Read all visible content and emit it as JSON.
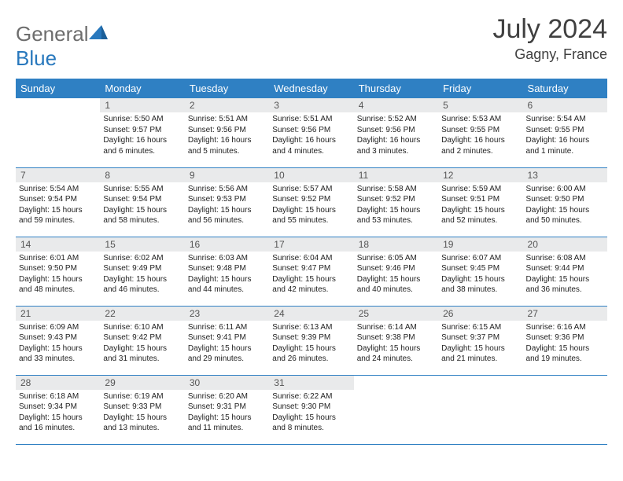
{
  "brand": {
    "part1": "General",
    "part2": "Blue"
  },
  "title": "July 2024",
  "location": "Gagny, France",
  "colors": {
    "header_bg": "#2f80c3",
    "header_text": "#ffffff",
    "daynum_bg": "#e9eaeb",
    "row_border": "#2f80c3",
    "logo_gray": "#6d6d6d",
    "logo_blue": "#2878bd"
  },
  "weekdays": [
    "Sunday",
    "Monday",
    "Tuesday",
    "Wednesday",
    "Thursday",
    "Friday",
    "Saturday"
  ],
  "weeks": [
    [
      null,
      {
        "n": "1",
        "sr": "Sunrise: 5:50 AM",
        "ss": "Sunset: 9:57 PM",
        "dl1": "Daylight: 16 hours",
        "dl2": "and 6 minutes."
      },
      {
        "n": "2",
        "sr": "Sunrise: 5:51 AM",
        "ss": "Sunset: 9:56 PM",
        "dl1": "Daylight: 16 hours",
        "dl2": "and 5 minutes."
      },
      {
        "n": "3",
        "sr": "Sunrise: 5:51 AM",
        "ss": "Sunset: 9:56 PM",
        "dl1": "Daylight: 16 hours",
        "dl2": "and 4 minutes."
      },
      {
        "n": "4",
        "sr": "Sunrise: 5:52 AM",
        "ss": "Sunset: 9:56 PM",
        "dl1": "Daylight: 16 hours",
        "dl2": "and 3 minutes."
      },
      {
        "n": "5",
        "sr": "Sunrise: 5:53 AM",
        "ss": "Sunset: 9:55 PM",
        "dl1": "Daylight: 16 hours",
        "dl2": "and 2 minutes."
      },
      {
        "n": "6",
        "sr": "Sunrise: 5:54 AM",
        "ss": "Sunset: 9:55 PM",
        "dl1": "Daylight: 16 hours",
        "dl2": "and 1 minute."
      }
    ],
    [
      {
        "n": "7",
        "sr": "Sunrise: 5:54 AM",
        "ss": "Sunset: 9:54 PM",
        "dl1": "Daylight: 15 hours",
        "dl2": "and 59 minutes."
      },
      {
        "n": "8",
        "sr": "Sunrise: 5:55 AM",
        "ss": "Sunset: 9:54 PM",
        "dl1": "Daylight: 15 hours",
        "dl2": "and 58 minutes."
      },
      {
        "n": "9",
        "sr": "Sunrise: 5:56 AM",
        "ss": "Sunset: 9:53 PM",
        "dl1": "Daylight: 15 hours",
        "dl2": "and 56 minutes."
      },
      {
        "n": "10",
        "sr": "Sunrise: 5:57 AM",
        "ss": "Sunset: 9:52 PM",
        "dl1": "Daylight: 15 hours",
        "dl2": "and 55 minutes."
      },
      {
        "n": "11",
        "sr": "Sunrise: 5:58 AM",
        "ss": "Sunset: 9:52 PM",
        "dl1": "Daylight: 15 hours",
        "dl2": "and 53 minutes."
      },
      {
        "n": "12",
        "sr": "Sunrise: 5:59 AM",
        "ss": "Sunset: 9:51 PM",
        "dl1": "Daylight: 15 hours",
        "dl2": "and 52 minutes."
      },
      {
        "n": "13",
        "sr": "Sunrise: 6:00 AM",
        "ss": "Sunset: 9:50 PM",
        "dl1": "Daylight: 15 hours",
        "dl2": "and 50 minutes."
      }
    ],
    [
      {
        "n": "14",
        "sr": "Sunrise: 6:01 AM",
        "ss": "Sunset: 9:50 PM",
        "dl1": "Daylight: 15 hours",
        "dl2": "and 48 minutes."
      },
      {
        "n": "15",
        "sr": "Sunrise: 6:02 AM",
        "ss": "Sunset: 9:49 PM",
        "dl1": "Daylight: 15 hours",
        "dl2": "and 46 minutes."
      },
      {
        "n": "16",
        "sr": "Sunrise: 6:03 AM",
        "ss": "Sunset: 9:48 PM",
        "dl1": "Daylight: 15 hours",
        "dl2": "and 44 minutes."
      },
      {
        "n": "17",
        "sr": "Sunrise: 6:04 AM",
        "ss": "Sunset: 9:47 PM",
        "dl1": "Daylight: 15 hours",
        "dl2": "and 42 minutes."
      },
      {
        "n": "18",
        "sr": "Sunrise: 6:05 AM",
        "ss": "Sunset: 9:46 PM",
        "dl1": "Daylight: 15 hours",
        "dl2": "and 40 minutes."
      },
      {
        "n": "19",
        "sr": "Sunrise: 6:07 AM",
        "ss": "Sunset: 9:45 PM",
        "dl1": "Daylight: 15 hours",
        "dl2": "and 38 minutes."
      },
      {
        "n": "20",
        "sr": "Sunrise: 6:08 AM",
        "ss": "Sunset: 9:44 PM",
        "dl1": "Daylight: 15 hours",
        "dl2": "and 36 minutes."
      }
    ],
    [
      {
        "n": "21",
        "sr": "Sunrise: 6:09 AM",
        "ss": "Sunset: 9:43 PM",
        "dl1": "Daylight: 15 hours",
        "dl2": "and 33 minutes."
      },
      {
        "n": "22",
        "sr": "Sunrise: 6:10 AM",
        "ss": "Sunset: 9:42 PM",
        "dl1": "Daylight: 15 hours",
        "dl2": "and 31 minutes."
      },
      {
        "n": "23",
        "sr": "Sunrise: 6:11 AM",
        "ss": "Sunset: 9:41 PM",
        "dl1": "Daylight: 15 hours",
        "dl2": "and 29 minutes."
      },
      {
        "n": "24",
        "sr": "Sunrise: 6:13 AM",
        "ss": "Sunset: 9:39 PM",
        "dl1": "Daylight: 15 hours",
        "dl2": "and 26 minutes."
      },
      {
        "n": "25",
        "sr": "Sunrise: 6:14 AM",
        "ss": "Sunset: 9:38 PM",
        "dl1": "Daylight: 15 hours",
        "dl2": "and 24 minutes."
      },
      {
        "n": "26",
        "sr": "Sunrise: 6:15 AM",
        "ss": "Sunset: 9:37 PM",
        "dl1": "Daylight: 15 hours",
        "dl2": "and 21 minutes."
      },
      {
        "n": "27",
        "sr": "Sunrise: 6:16 AM",
        "ss": "Sunset: 9:36 PM",
        "dl1": "Daylight: 15 hours",
        "dl2": "and 19 minutes."
      }
    ],
    [
      {
        "n": "28",
        "sr": "Sunrise: 6:18 AM",
        "ss": "Sunset: 9:34 PM",
        "dl1": "Daylight: 15 hours",
        "dl2": "and 16 minutes."
      },
      {
        "n": "29",
        "sr": "Sunrise: 6:19 AM",
        "ss": "Sunset: 9:33 PM",
        "dl1": "Daylight: 15 hours",
        "dl2": "and 13 minutes."
      },
      {
        "n": "30",
        "sr": "Sunrise: 6:20 AM",
        "ss": "Sunset: 9:31 PM",
        "dl1": "Daylight: 15 hours",
        "dl2": "and 11 minutes."
      },
      {
        "n": "31",
        "sr": "Sunrise: 6:22 AM",
        "ss": "Sunset: 9:30 PM",
        "dl1": "Daylight: 15 hours",
        "dl2": "and 8 minutes."
      },
      null,
      null,
      null
    ]
  ]
}
